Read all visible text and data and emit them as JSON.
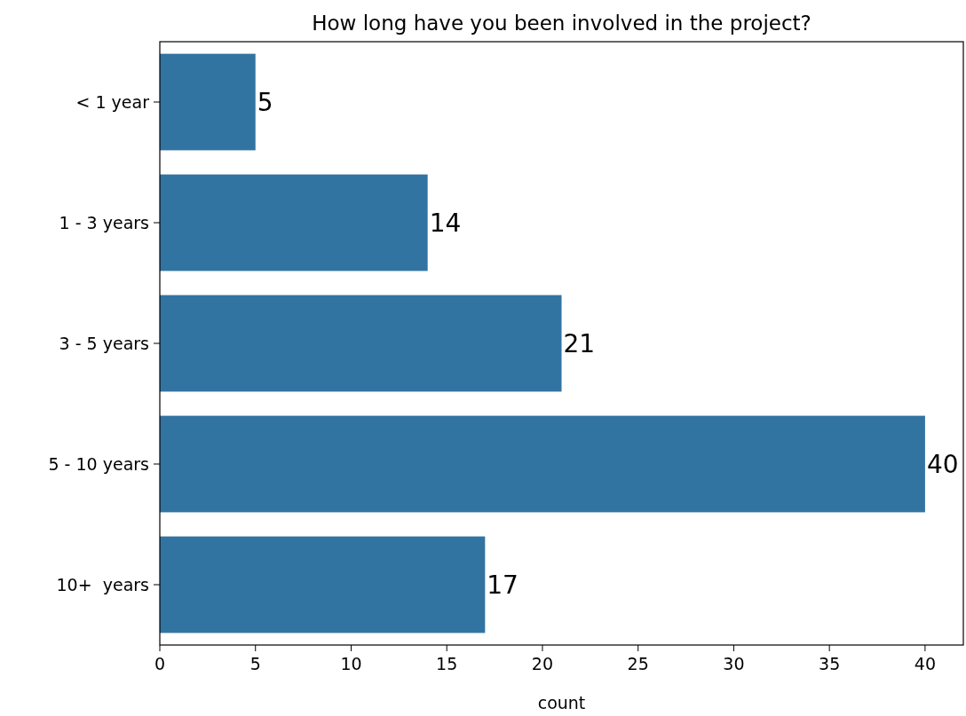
{
  "chart_data": {
    "type": "bar",
    "orientation": "horizontal",
    "title": "How long have you been involved in the project?",
    "xlabel": "count",
    "categories": [
      "< 1 year",
      "1 - 3 years",
      "3 - 5 years",
      "5 - 10 years",
      "10+  years"
    ],
    "values": [
      5,
      14,
      21,
      40,
      17
    ],
    "color": "#3274a1",
    "xlim": [
      0,
      42
    ],
    "xticks": [
      0,
      5,
      10,
      15,
      20,
      25,
      30,
      35,
      40
    ],
    "data_labels": true
  }
}
